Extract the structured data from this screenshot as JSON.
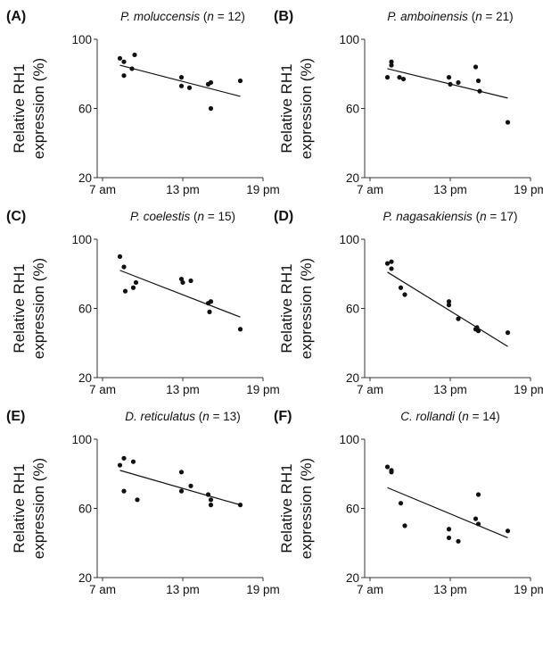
{
  "chart_data": [
    {
      "type": "scatter",
      "letter": "(A)",
      "species": "P. moluccensis",
      "n_label": "n",
      "n_value": "12",
      "ylabel_line1": "Relative RH1",
      "ylabel_line2": "expression (%)",
      "ylim": [
        20,
        100
      ],
      "yticks": [
        "20",
        "60",
        "100"
      ],
      "xlim": [
        7,
        19
      ],
      "xticks": [
        "7 am",
        "13 pm",
        "19 pm"
      ],
      "points": [
        [
          8.3,
          89
        ],
        [
          8.6,
          87
        ],
        [
          8.6,
          79
        ],
        [
          9.2,
          83
        ],
        [
          9.4,
          91
        ],
        [
          12.9,
          78
        ],
        [
          12.9,
          73
        ],
        [
          13.5,
          72
        ],
        [
          14.9,
          74
        ],
        [
          15.1,
          75
        ],
        [
          15.1,
          60
        ],
        [
          17.3,
          76
        ]
      ],
      "trend": [
        [
          8.3,
          85
        ],
        [
          17.3,
          67
        ]
      ]
    },
    {
      "type": "scatter",
      "letter": "(B)",
      "species": "P. amboinensis",
      "n_label": "n",
      "n_value": "21",
      "ylabel_line1": "Relative RH1",
      "ylabel_line2": "expression (%)",
      "ylim": [
        20,
        100
      ],
      "yticks": [
        "20",
        "60",
        "100"
      ],
      "xlim": [
        7,
        19
      ],
      "xticks": [
        "7 am",
        "13 pm",
        "19 pm"
      ],
      "points": [
        [
          8.3,
          78
        ],
        [
          8.6,
          87
        ],
        [
          8.6,
          85
        ],
        [
          9.2,
          78
        ],
        [
          9.5,
          77
        ],
        [
          12.9,
          78
        ],
        [
          13.0,
          74
        ],
        [
          13.6,
          75
        ],
        [
          14.9,
          84
        ],
        [
          15.1,
          76
        ],
        [
          15.2,
          70
        ],
        [
          17.3,
          52
        ]
      ],
      "trend": [
        [
          8.3,
          83
        ],
        [
          17.3,
          66
        ]
      ]
    },
    {
      "type": "scatter",
      "letter": "(C)",
      "species": "P. coelestis",
      "n_label": "n",
      "n_value": "15",
      "ylabel_line1": "Relative RH1",
      "ylabel_line2": "expression (%)",
      "ylim": [
        20,
        100
      ],
      "yticks": [
        "20",
        "60",
        "100"
      ],
      "xlim": [
        7,
        19
      ],
      "xticks": [
        "7 am",
        "13 pm",
        "19 pm"
      ],
      "points": [
        [
          8.3,
          90
        ],
        [
          8.6,
          84
        ],
        [
          8.7,
          70
        ],
        [
          9.3,
          72
        ],
        [
          9.5,
          75
        ],
        [
          12.9,
          77
        ],
        [
          13.0,
          75
        ],
        [
          13.6,
          76
        ],
        [
          14.9,
          63
        ],
        [
          15.1,
          64
        ],
        [
          15.0,
          58
        ],
        [
          17.3,
          48
        ]
      ],
      "trend": [
        [
          8.3,
          82
        ],
        [
          17.3,
          55
        ]
      ]
    },
    {
      "type": "scatter",
      "letter": "(D)",
      "species": "P. nagasakiensis",
      "n_label": "n",
      "n_value": "17",
      "ylabel_line1": "Relative RH1",
      "ylabel_line2": "expression (%)",
      "ylim": [
        20,
        100
      ],
      "yticks": [
        "20",
        "60",
        "100"
      ],
      "xlim": [
        7,
        19
      ],
      "xticks": [
        "7 am",
        "13 pm",
        "19 pm"
      ],
      "points": [
        [
          8.3,
          86
        ],
        [
          8.6,
          87
        ],
        [
          8.6,
          83
        ],
        [
          9.3,
          72
        ],
        [
          9.6,
          68
        ],
        [
          12.9,
          64
        ],
        [
          12.9,
          62
        ],
        [
          13.6,
          54
        ],
        [
          14.9,
          48
        ],
        [
          15.1,
          47
        ],
        [
          15.0,
          49
        ],
        [
          17.3,
          46
        ]
      ],
      "trend": [
        [
          8.3,
          81
        ],
        [
          17.3,
          38
        ]
      ]
    },
    {
      "type": "scatter",
      "letter": "(E)",
      "species": "D. reticulatus",
      "n_label": "n",
      "n_value": "13",
      "ylabel_line1": "Relative RH1",
      "ylabel_line2": "expression (%)",
      "ylim": [
        20,
        100
      ],
      "yticks": [
        "20",
        "60",
        "100"
      ],
      "xlim": [
        7,
        19
      ],
      "xticks": [
        "7 am",
        "13 pm",
        "19 pm"
      ],
      "points": [
        [
          8.3,
          85
        ],
        [
          8.6,
          89
        ],
        [
          8.6,
          70
        ],
        [
          9.3,
          87
        ],
        [
          9.6,
          65
        ],
        [
          12.9,
          81
        ],
        [
          12.9,
          70
        ],
        [
          13.6,
          73
        ],
        [
          14.9,
          68
        ],
        [
          15.1,
          65
        ],
        [
          15.1,
          62
        ],
        [
          17.3,
          62
        ]
      ],
      "trend": [
        [
          8.3,
          82
        ],
        [
          17.3,
          62
        ]
      ]
    },
    {
      "type": "scatter",
      "letter": "(F)",
      "species": "C. rollandi",
      "n_label": "n",
      "n_value": "14",
      "ylabel_line1": "Relative RH1",
      "ylabel_line2": "expression (%)",
      "ylim": [
        20,
        100
      ],
      "yticks": [
        "20",
        "60",
        "100"
      ],
      "xlim": [
        7,
        19
      ],
      "xticks": [
        "7 am",
        "13 pm",
        "19 pm"
      ],
      "points": [
        [
          8.3,
          84
        ],
        [
          8.6,
          82
        ],
        [
          8.6,
          81
        ],
        [
          9.3,
          63
        ],
        [
          9.6,
          50
        ],
        [
          12.9,
          48
        ],
        [
          12.9,
          43
        ],
        [
          13.6,
          41
        ],
        [
          14.9,
          54
        ],
        [
          15.1,
          68
        ],
        [
          15.1,
          51
        ],
        [
          17.3,
          47
        ]
      ],
      "trend": [
        [
          8.3,
          72
        ],
        [
          17.3,
          43
        ]
      ]
    }
  ]
}
